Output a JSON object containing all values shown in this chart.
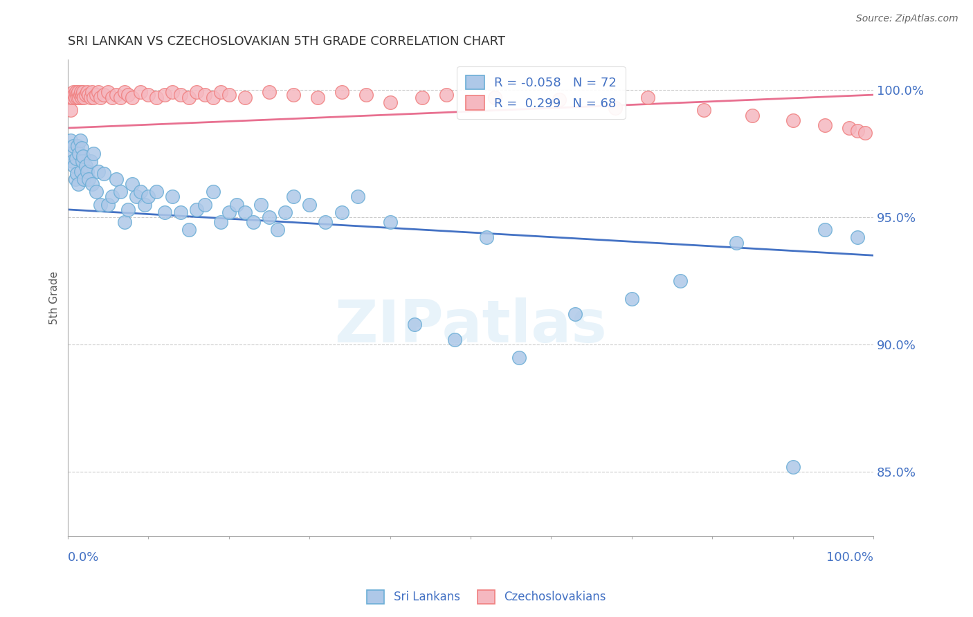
{
  "title": "SRI LANKAN VS CZECHOSLOVAKIAN 5TH GRADE CORRELATION CHART",
  "source": "Source: ZipAtlas.com",
  "ylabel": "5th Grade",
  "y_ticks": [
    0.85,
    0.9,
    0.95,
    1.0
  ],
  "y_tick_labels": [
    "85.0%",
    "90.0%",
    "95.0%",
    "100.0%"
  ],
  "x_range": [
    0.0,
    1.0
  ],
  "y_range": [
    0.825,
    1.012
  ],
  "sri_lankans_color_face": "#aec8e8",
  "sri_lankans_color_edge": "#6baed6",
  "czechoslovakians_color_face": "#f5b8c0",
  "czechoslovakians_color_edge": "#f08080",
  "sri_lankans_R": -0.058,
  "sri_lankans_N": 72,
  "czechoslovakians_R": 0.299,
  "czechoslovakians_N": 68,
  "sri_line_x0": 0.0,
  "sri_line_y0": 0.953,
  "sri_line_x1": 1.0,
  "sri_line_y1": 0.935,
  "czech_line_x0": 0.0,
  "czech_line_y0": 0.985,
  "czech_line_x1": 1.0,
  "czech_line_y1": 0.998,
  "sri_lankans_x": [
    0.003,
    0.005,
    0.006,
    0.007,
    0.008,
    0.009,
    0.01,
    0.011,
    0.012,
    0.013,
    0.014,
    0.015,
    0.016,
    0.017,
    0.018,
    0.019,
    0.02,
    0.022,
    0.024,
    0.026,
    0.028,
    0.03,
    0.032,
    0.035,
    0.038,
    0.04,
    0.045,
    0.05,
    0.055,
    0.06,
    0.065,
    0.07,
    0.075,
    0.08,
    0.085,
    0.09,
    0.095,
    0.1,
    0.11,
    0.12,
    0.13,
    0.14,
    0.15,
    0.16,
    0.17,
    0.18,
    0.19,
    0.2,
    0.21,
    0.22,
    0.23,
    0.24,
    0.25,
    0.26,
    0.27,
    0.28,
    0.3,
    0.32,
    0.34,
    0.36,
    0.4,
    0.43,
    0.48,
    0.52,
    0.56,
    0.63,
    0.7,
    0.76,
    0.83,
    0.9,
    0.94,
    0.98
  ],
  "sri_lankans_y": [
    0.98,
    0.975,
    0.972,
    0.978,
    0.97,
    0.965,
    0.973,
    0.967,
    0.978,
    0.963,
    0.975,
    0.98,
    0.968,
    0.977,
    0.972,
    0.974,
    0.965,
    0.97,
    0.968,
    0.965,
    0.972,
    0.963,
    0.975,
    0.96,
    0.968,
    0.955,
    0.967,
    0.955,
    0.958,
    0.965,
    0.96,
    0.948,
    0.953,
    0.963,
    0.958,
    0.96,
    0.955,
    0.958,
    0.96,
    0.952,
    0.958,
    0.952,
    0.945,
    0.953,
    0.955,
    0.96,
    0.948,
    0.952,
    0.955,
    0.952,
    0.948,
    0.955,
    0.95,
    0.945,
    0.952,
    0.958,
    0.955,
    0.948,
    0.952,
    0.958,
    0.948,
    0.908,
    0.902,
    0.942,
    0.895,
    0.912,
    0.918,
    0.925,
    0.94,
    0.852,
    0.945,
    0.942
  ],
  "czechoslovakians_x": [
    0.003,
    0.004,
    0.005,
    0.006,
    0.007,
    0.008,
    0.009,
    0.01,
    0.011,
    0.012,
    0.013,
    0.014,
    0.015,
    0.016,
    0.017,
    0.018,
    0.019,
    0.02,
    0.022,
    0.024,
    0.026,
    0.028,
    0.03,
    0.032,
    0.035,
    0.038,
    0.04,
    0.045,
    0.05,
    0.055,
    0.06,
    0.065,
    0.07,
    0.075,
    0.08,
    0.09,
    0.1,
    0.11,
    0.12,
    0.13,
    0.14,
    0.15,
    0.16,
    0.17,
    0.18,
    0.19,
    0.2,
    0.22,
    0.25,
    0.28,
    0.31,
    0.34,
    0.37,
    0.4,
    0.44,
    0.47,
    0.5,
    0.53,
    0.61,
    0.68,
    0.72,
    0.79,
    0.85,
    0.9,
    0.94,
    0.97,
    0.98,
    0.99
  ],
  "czechoslovakians_y": [
    0.992,
    0.997,
    0.998,
    0.997,
    0.999,
    0.998,
    0.997,
    0.999,
    0.998,
    0.997,
    0.999,
    0.997,
    0.998,
    0.999,
    0.997,
    0.998,
    0.999,
    0.997,
    0.998,
    0.999,
    0.998,
    0.997,
    0.999,
    0.997,
    0.998,
    0.999,
    0.997,
    0.998,
    0.999,
    0.997,
    0.998,
    0.997,
    0.999,
    0.998,
    0.997,
    0.999,
    0.998,
    0.997,
    0.998,
    0.999,
    0.998,
    0.997,
    0.999,
    0.998,
    0.997,
    0.999,
    0.998,
    0.997,
    0.999,
    0.998,
    0.997,
    0.999,
    0.998,
    0.995,
    0.997,
    0.998,
    0.995,
    0.997,
    0.996,
    0.993,
    0.997,
    0.992,
    0.99,
    0.988,
    0.986,
    0.985,
    0.984,
    0.983
  ],
  "watermark_text": "ZIPatlas",
  "grid_color": "#cccccc",
  "text_color": "#4472c4",
  "trendline_blue": "#4472c4",
  "trendline_pink": "#e87090"
}
